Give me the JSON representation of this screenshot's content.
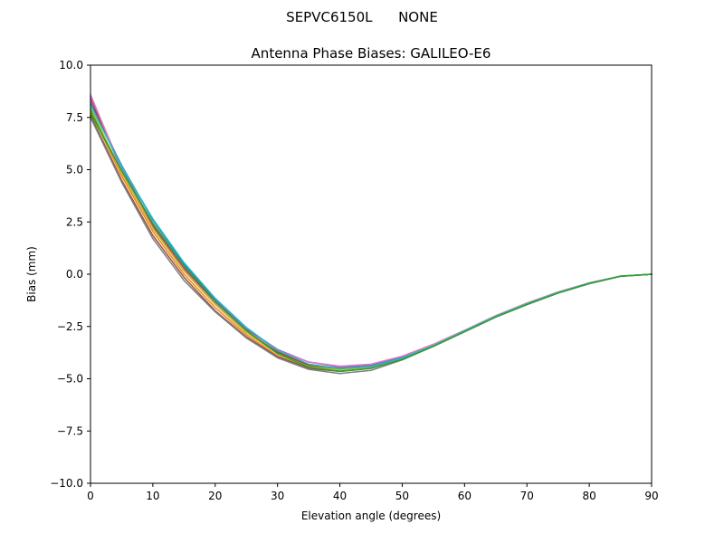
{
  "figure": {
    "suptitle": "SEPVC6150L      NONE"
  },
  "chart_data": {
    "type": "line",
    "title": "Antenna Phase Biases: GALILEO-E6",
    "xlabel": "Elevation angle (degrees)",
    "ylabel": "Bias (mm)",
    "xlim": [
      0,
      90
    ],
    "ylim": [
      -10,
      10
    ],
    "xticks": [
      0,
      10,
      20,
      30,
      40,
      50,
      60,
      70,
      80,
      90
    ],
    "yticks": [
      10.0,
      7.5,
      5.0,
      2.5,
      0.0,
      -2.5,
      -5.0,
      -7.5,
      -10.0
    ],
    "xtick_labels": [
      "0",
      "10",
      "20",
      "30",
      "40",
      "50",
      "60",
      "70",
      "80",
      "90"
    ],
    "ytick_labels": [
      "10.0",
      "7.5",
      "5.0",
      "2.5",
      "0.0",
      "−2.5",
      "−5.0",
      "−7.5",
      "−10.0"
    ],
    "grid": false,
    "legend": "none",
    "x": [
      0,
      5,
      10,
      15,
      20,
      25,
      30,
      35,
      40,
      45,
      50,
      55,
      60,
      65,
      70,
      75,
      80,
      85,
      90
    ],
    "series": [
      {
        "color": "#1f77b4",
        "values": [
          8.2,
          5.2,
          2.6,
          0.5,
          -1.2,
          -2.6,
          -3.7,
          -4.35,
          -4.55,
          -4.45,
          -4.05,
          -3.45,
          -2.75,
          -2.05,
          -1.45,
          -0.9,
          -0.45,
          -0.1,
          0.0
        ]
      },
      {
        "color": "#ff7f0e",
        "values": [
          7.8,
          4.7,
          2.05,
          0.0,
          -1.6,
          -2.9,
          -3.9,
          -4.5,
          -4.6,
          -4.5,
          -4.05,
          -3.4,
          -2.7,
          -2.0,
          -1.4,
          -0.88,
          -0.42,
          -0.1,
          0.0
        ]
      },
      {
        "color": "#2ca02c",
        "values": [
          7.9,
          4.9,
          2.3,
          0.25,
          -1.35,
          -2.7,
          -3.75,
          -4.4,
          -4.6,
          -4.45,
          -4.0,
          -3.4,
          -2.7,
          -2.0,
          -1.4,
          -0.87,
          -0.42,
          -0.09,
          0.0
        ]
      },
      {
        "color": "#d62728",
        "values": [
          8.4,
          5.0,
          2.35,
          0.3,
          -1.3,
          -2.65,
          -3.7,
          -4.35,
          -4.5,
          -4.4,
          -4.0,
          -3.4,
          -2.72,
          -2.02,
          -1.42,
          -0.88,
          -0.43,
          -0.1,
          0.0
        ]
      },
      {
        "color": "#9467bd",
        "values": [
          8.5,
          5.1,
          2.4,
          0.35,
          -1.25,
          -2.6,
          -3.6,
          -4.2,
          -4.45,
          -4.35,
          -3.95,
          -3.38,
          -2.7,
          -2.0,
          -1.4,
          -0.86,
          -0.42,
          -0.09,
          0.0
        ]
      },
      {
        "color": "#8c564b",
        "values": [
          7.6,
          4.5,
          1.85,
          -0.15,
          -1.75,
          -3.0,
          -3.95,
          -4.5,
          -4.65,
          -4.5,
          -4.05,
          -3.42,
          -2.72,
          -2.02,
          -1.42,
          -0.88,
          -0.43,
          -0.1,
          0.0
        ]
      },
      {
        "color": "#e377c2",
        "values": [
          8.6,
          5.0,
          2.2,
          0.2,
          -1.4,
          -2.7,
          -3.65,
          -4.2,
          -4.4,
          -4.3,
          -3.92,
          -3.35,
          -2.68,
          -1.98,
          -1.38,
          -0.85,
          -0.41,
          -0.09,
          0.0
        ]
      },
      {
        "color": "#7f7f7f",
        "values": [
          7.5,
          4.4,
          1.7,
          -0.3,
          -1.8,
          -3.05,
          -4.0,
          -4.55,
          -4.75,
          -4.6,
          -4.1,
          -3.45,
          -2.75,
          -2.05,
          -1.45,
          -0.9,
          -0.45,
          -0.1,
          0.0
        ]
      },
      {
        "color": "#bcbd22",
        "values": [
          8.0,
          4.85,
          2.2,
          0.15,
          -1.45,
          -2.8,
          -3.8,
          -4.42,
          -4.58,
          -4.45,
          -4.02,
          -3.42,
          -2.72,
          -2.02,
          -1.42,
          -0.88,
          -0.43,
          -0.1,
          0.0
        ]
      },
      {
        "color": "#17becf",
        "values": [
          8.1,
          5.15,
          2.65,
          0.55,
          -1.15,
          -2.55,
          -3.65,
          -4.3,
          -4.52,
          -4.42,
          -4.02,
          -3.42,
          -2.72,
          -2.02,
          -1.42,
          -0.88,
          -0.43,
          -0.1,
          0.0
        ]
      },
      {
        "color": "#2ca02c",
        "values": [
          7.7,
          4.95,
          2.45,
          0.4,
          -1.3,
          -2.7,
          -3.8,
          -4.45,
          -4.65,
          -4.5,
          -4.08,
          -3.45,
          -2.75,
          -2.05,
          -1.45,
          -0.9,
          -0.45,
          -0.1,
          0.0
        ]
      }
    ]
  }
}
